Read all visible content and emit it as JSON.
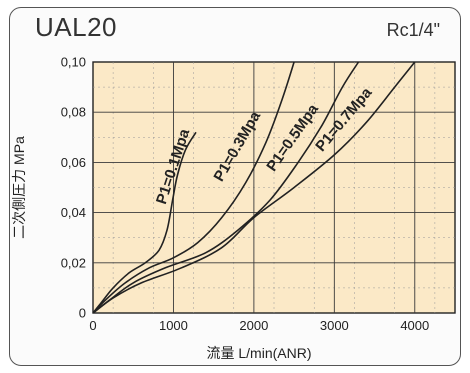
{
  "chart_data": {
    "type": "line",
    "title": "UAL20",
    "subtitle": "Rc1/4\"",
    "xlabel": "流量 L/min(ANR)",
    "ylabel": "二次側圧力 MPa",
    "xlim": [
      0,
      4500
    ],
    "ylim": [
      0,
      0.1
    ],
    "x_ticks": [
      "0",
      "1000",
      "2000",
      "3000",
      "4000"
    ],
    "y_ticks": [
      "0",
      "0,02",
      "0,04",
      "0,06",
      "0,08",
      "0,10"
    ],
    "grid": true,
    "series": [
      {
        "name": "P1=0.1Mpa",
        "points": [
          [
            0,
            0
          ],
          [
            100,
            0.004
          ],
          [
            250,
            0.01
          ],
          [
            450,
            0.016
          ],
          [
            650,
            0.02
          ],
          [
            820,
            0.025
          ],
          [
            920,
            0.033
          ],
          [
            990,
            0.045
          ],
          [
            1050,
            0.055
          ],
          [
            1150,
            0.065
          ],
          [
            1280,
            0.072
          ]
        ]
      },
      {
        "name": "P1=0.3Mpa",
        "points": [
          [
            0,
            0
          ],
          [
            150,
            0.005
          ],
          [
            400,
            0.012
          ],
          [
            700,
            0.018
          ],
          [
            1000,
            0.022
          ],
          [
            1300,
            0.028
          ],
          [
            1600,
            0.038
          ],
          [
            1900,
            0.052
          ],
          [
            2150,
            0.068
          ],
          [
            2350,
            0.085
          ],
          [
            2500,
            0.1
          ]
        ]
      },
      {
        "name": "P1=0.5Mpa",
        "points": [
          [
            0,
            0
          ],
          [
            200,
            0.005
          ],
          [
            500,
            0.012
          ],
          [
            900,
            0.018
          ],
          [
            1400,
            0.024
          ],
          [
            1800,
            0.033
          ],
          [
            2200,
            0.045
          ],
          [
            2550,
            0.06
          ],
          [
            2850,
            0.075
          ],
          [
            3100,
            0.09
          ],
          [
            3300,
            0.1
          ]
        ]
      },
      {
        "name": "P1=0.7Mpa",
        "points": [
          [
            0,
            0
          ],
          [
            250,
            0.006
          ],
          [
            600,
            0.012
          ],
          [
            1100,
            0.018
          ],
          [
            1600,
            0.026
          ],
          [
            2000,
            0.038
          ],
          [
            2500,
            0.05
          ],
          [
            3000,
            0.063
          ],
          [
            3400,
            0.076
          ],
          [
            3750,
            0.09
          ],
          [
            4000,
            0.1
          ]
        ]
      }
    ],
    "curve_labels": [
      {
        "text": "P1=0.1Mpa",
        "x": 900,
        "y": 0.043,
        "angle": -72
      },
      {
        "text": "P1=0.3Mpa",
        "x": 1600,
        "y": 0.052,
        "angle": -60
      },
      {
        "text": "P1=0.5Mpa",
        "x": 2250,
        "y": 0.056,
        "angle": -55
      },
      {
        "text": "P1=0.7Mpa",
        "x": 2850,
        "y": 0.064,
        "angle": -50
      }
    ],
    "colors": {
      "plot_bg": "#fbe9c7",
      "grid": "#3a3a3a",
      "line": "#222222"
    }
  }
}
